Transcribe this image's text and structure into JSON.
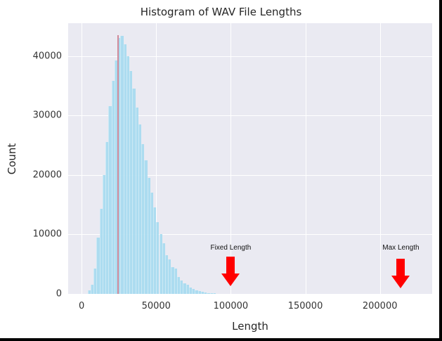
{
  "chart_data": {
    "type": "bar",
    "title": "Histogram of WAV File Lengths",
    "xlabel": "Length",
    "ylabel": "Count",
    "xlim": [
      -9000,
      235000
    ],
    "ylim": [
      0,
      45500
    ],
    "grid": true,
    "xticks": [
      "0",
      "50000",
      "100000",
      "150000",
      "200000"
    ],
    "yticks": [
      "0",
      "10000",
      "20000",
      "30000",
      "40000"
    ],
    "bin_width": 2000,
    "bins_start": [
      4000,
      6000,
      8000,
      10000,
      12000,
      14000,
      16000,
      18000,
      20000,
      22000,
      24000,
      26000,
      28000,
      30000,
      32000,
      34000,
      36000,
      38000,
      40000,
      42000,
      44000,
      46000,
      48000,
      50000,
      52000,
      54000,
      56000,
      58000,
      60000,
      62000,
      64000,
      66000,
      68000,
      70000,
      72000,
      74000,
      76000,
      78000,
      80000,
      82000,
      84000,
      86000,
      88000,
      90000,
      92000,
      94000
    ],
    "values": [
      600,
      1500,
      4300,
      9500,
      14300,
      20000,
      25500,
      31500,
      35800,
      39200,
      43000,
      43400,
      42000,
      39900,
      37500,
      34500,
      31300,
      28500,
      25200,
      22500,
      19500,
      17000,
      14500,
      12000,
      10000,
      8500,
      6500,
      5800,
      4500,
      4200,
      2800,
      2200,
      1800,
      1500,
      1100,
      800,
      600,
      450,
      300,
      220,
      150,
      100,
      70,
      50,
      30,
      15
    ],
    "median_line": {
      "x": 24500,
      "color": "#d08a9a"
    },
    "bar_color": "#a9dcf0",
    "annotations": [
      {
        "text": "Fixed Length",
        "x": 100000,
        "arrow_color": "#ff0000"
      },
      {
        "text": "Max Length",
        "x": 214000,
        "arrow_color": "#ff0000"
      }
    ]
  }
}
